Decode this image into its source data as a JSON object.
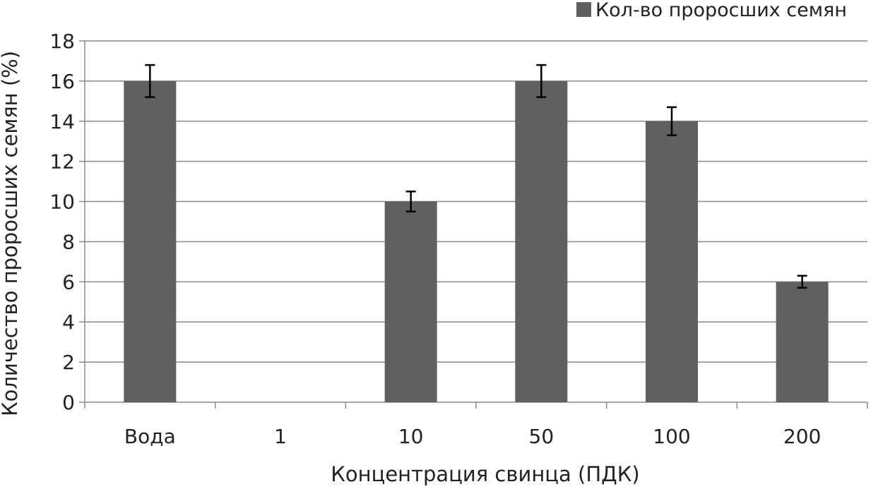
{
  "chart_data": {
    "type": "bar",
    "categories": [
      "Вода",
      "1",
      "10",
      "50",
      "100",
      "200"
    ],
    "series": [
      {
        "name": "Кол-во проросших семян",
        "values": [
          16,
          0,
          10,
          16,
          14,
          6
        ],
        "errors": [
          0.8,
          0,
          0.5,
          0.8,
          0.7,
          0.3
        ],
        "color": "#606060"
      }
    ],
    "xlabel": "Концентрация свинца (ПДК)",
    "ylabel": "Количество проросших семян (%)",
    "ylim": [
      0,
      18
    ],
    "yticks": [
      "0",
      "2",
      "4",
      "6",
      "8",
      "10",
      "12",
      "14",
      "16",
      "18"
    ],
    "grid": "horizontal",
    "legend": "top-right"
  }
}
